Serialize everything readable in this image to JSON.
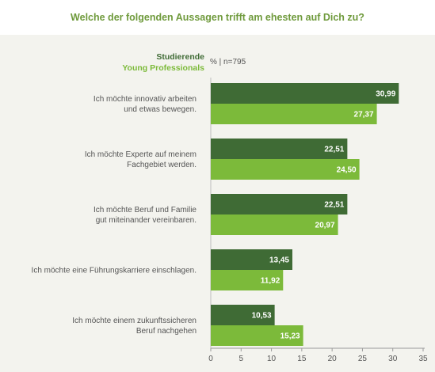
{
  "title": "Welche der folgenden Aussagen trifft am ehesten auf Dich zu?",
  "unit_note": "% | n=795",
  "colors": {
    "title": "#6f9a3c",
    "studierende": "#3f6b35",
    "young_professionals": "#7cba3a",
    "panel": "#f3f3ee"
  },
  "chart_data": {
    "type": "bar",
    "orientation": "horizontal",
    "title": "Welche der folgenden Aussagen trifft am ehesten auf Dich zu?",
    "categories": [
      [
        "Ich möchte innovativ arbeiten",
        "und etwas bewegen."
      ],
      [
        "Ich möchte Experte auf meinem",
        "Fachgebiet werden."
      ],
      [
        "Ich möchte Beruf und Familie",
        "gut miteinander vereinbaren."
      ],
      [
        "Ich möchte eine Führungskarriere einschlagen."
      ],
      [
        "Ich möchte einem zukunftssicheren",
        "Beruf nachgehen"
      ]
    ],
    "series": [
      {
        "name": "Studierende",
        "values": [
          30.99,
          22.51,
          22.51,
          13.45,
          10.53
        ],
        "labels": [
          "30,99",
          "22,51",
          "22,51",
          "13,45",
          "10,53"
        ],
        "color": "#3f6b35"
      },
      {
        "name": "Young Professionals",
        "values": [
          27.37,
          24.5,
          20.97,
          11.92,
          15.23
        ],
        "labels": [
          "27,37",
          "24,50",
          "20,97",
          "11,92",
          "15,23"
        ],
        "color": "#7cba3a"
      }
    ],
    "xlim": [
      0,
      35
    ],
    "xticks": [
      "0",
      "5",
      "10",
      "15",
      "20",
      "25",
      "30",
      "35"
    ],
    "legend_position": "top-left of plot",
    "grid": false
  }
}
